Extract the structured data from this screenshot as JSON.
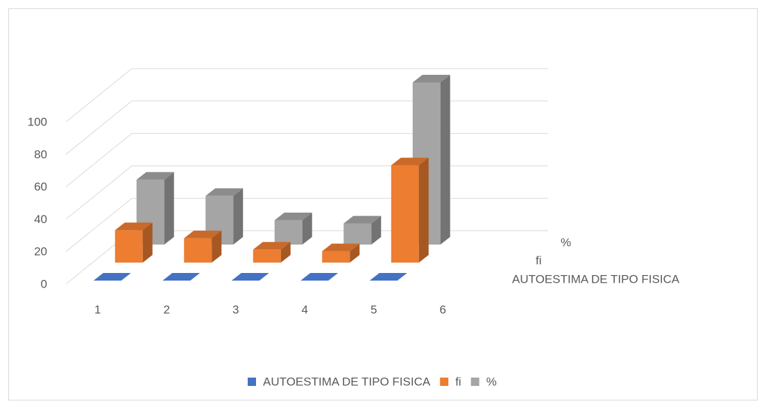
{
  "chart_data": {
    "type": "bar3d",
    "categories": [
      "1",
      "2",
      "3",
      "4",
      "5",
      "6"
    ],
    "series": [
      {
        "name": "AUTOESTIMA DE TIPO FISICA",
        "color": "#4472c4",
        "values": [
          0,
          0,
          0,
          0,
          0,
          null
        ]
      },
      {
        "name": "fi",
        "color": "#ed7d31",
        "values": [
          20,
          15,
          8,
          7,
          60,
          null
        ]
      },
      {
        "name": "%",
        "color": "#a5a5a5",
        "values": [
          40,
          30,
          15,
          13,
          100,
          null
        ]
      }
    ],
    "ylim": [
      0,
      100
    ],
    "yticks": [
      0,
      20,
      40,
      60,
      80,
      100
    ],
    "grid": true,
    "legend": "bottom"
  }
}
